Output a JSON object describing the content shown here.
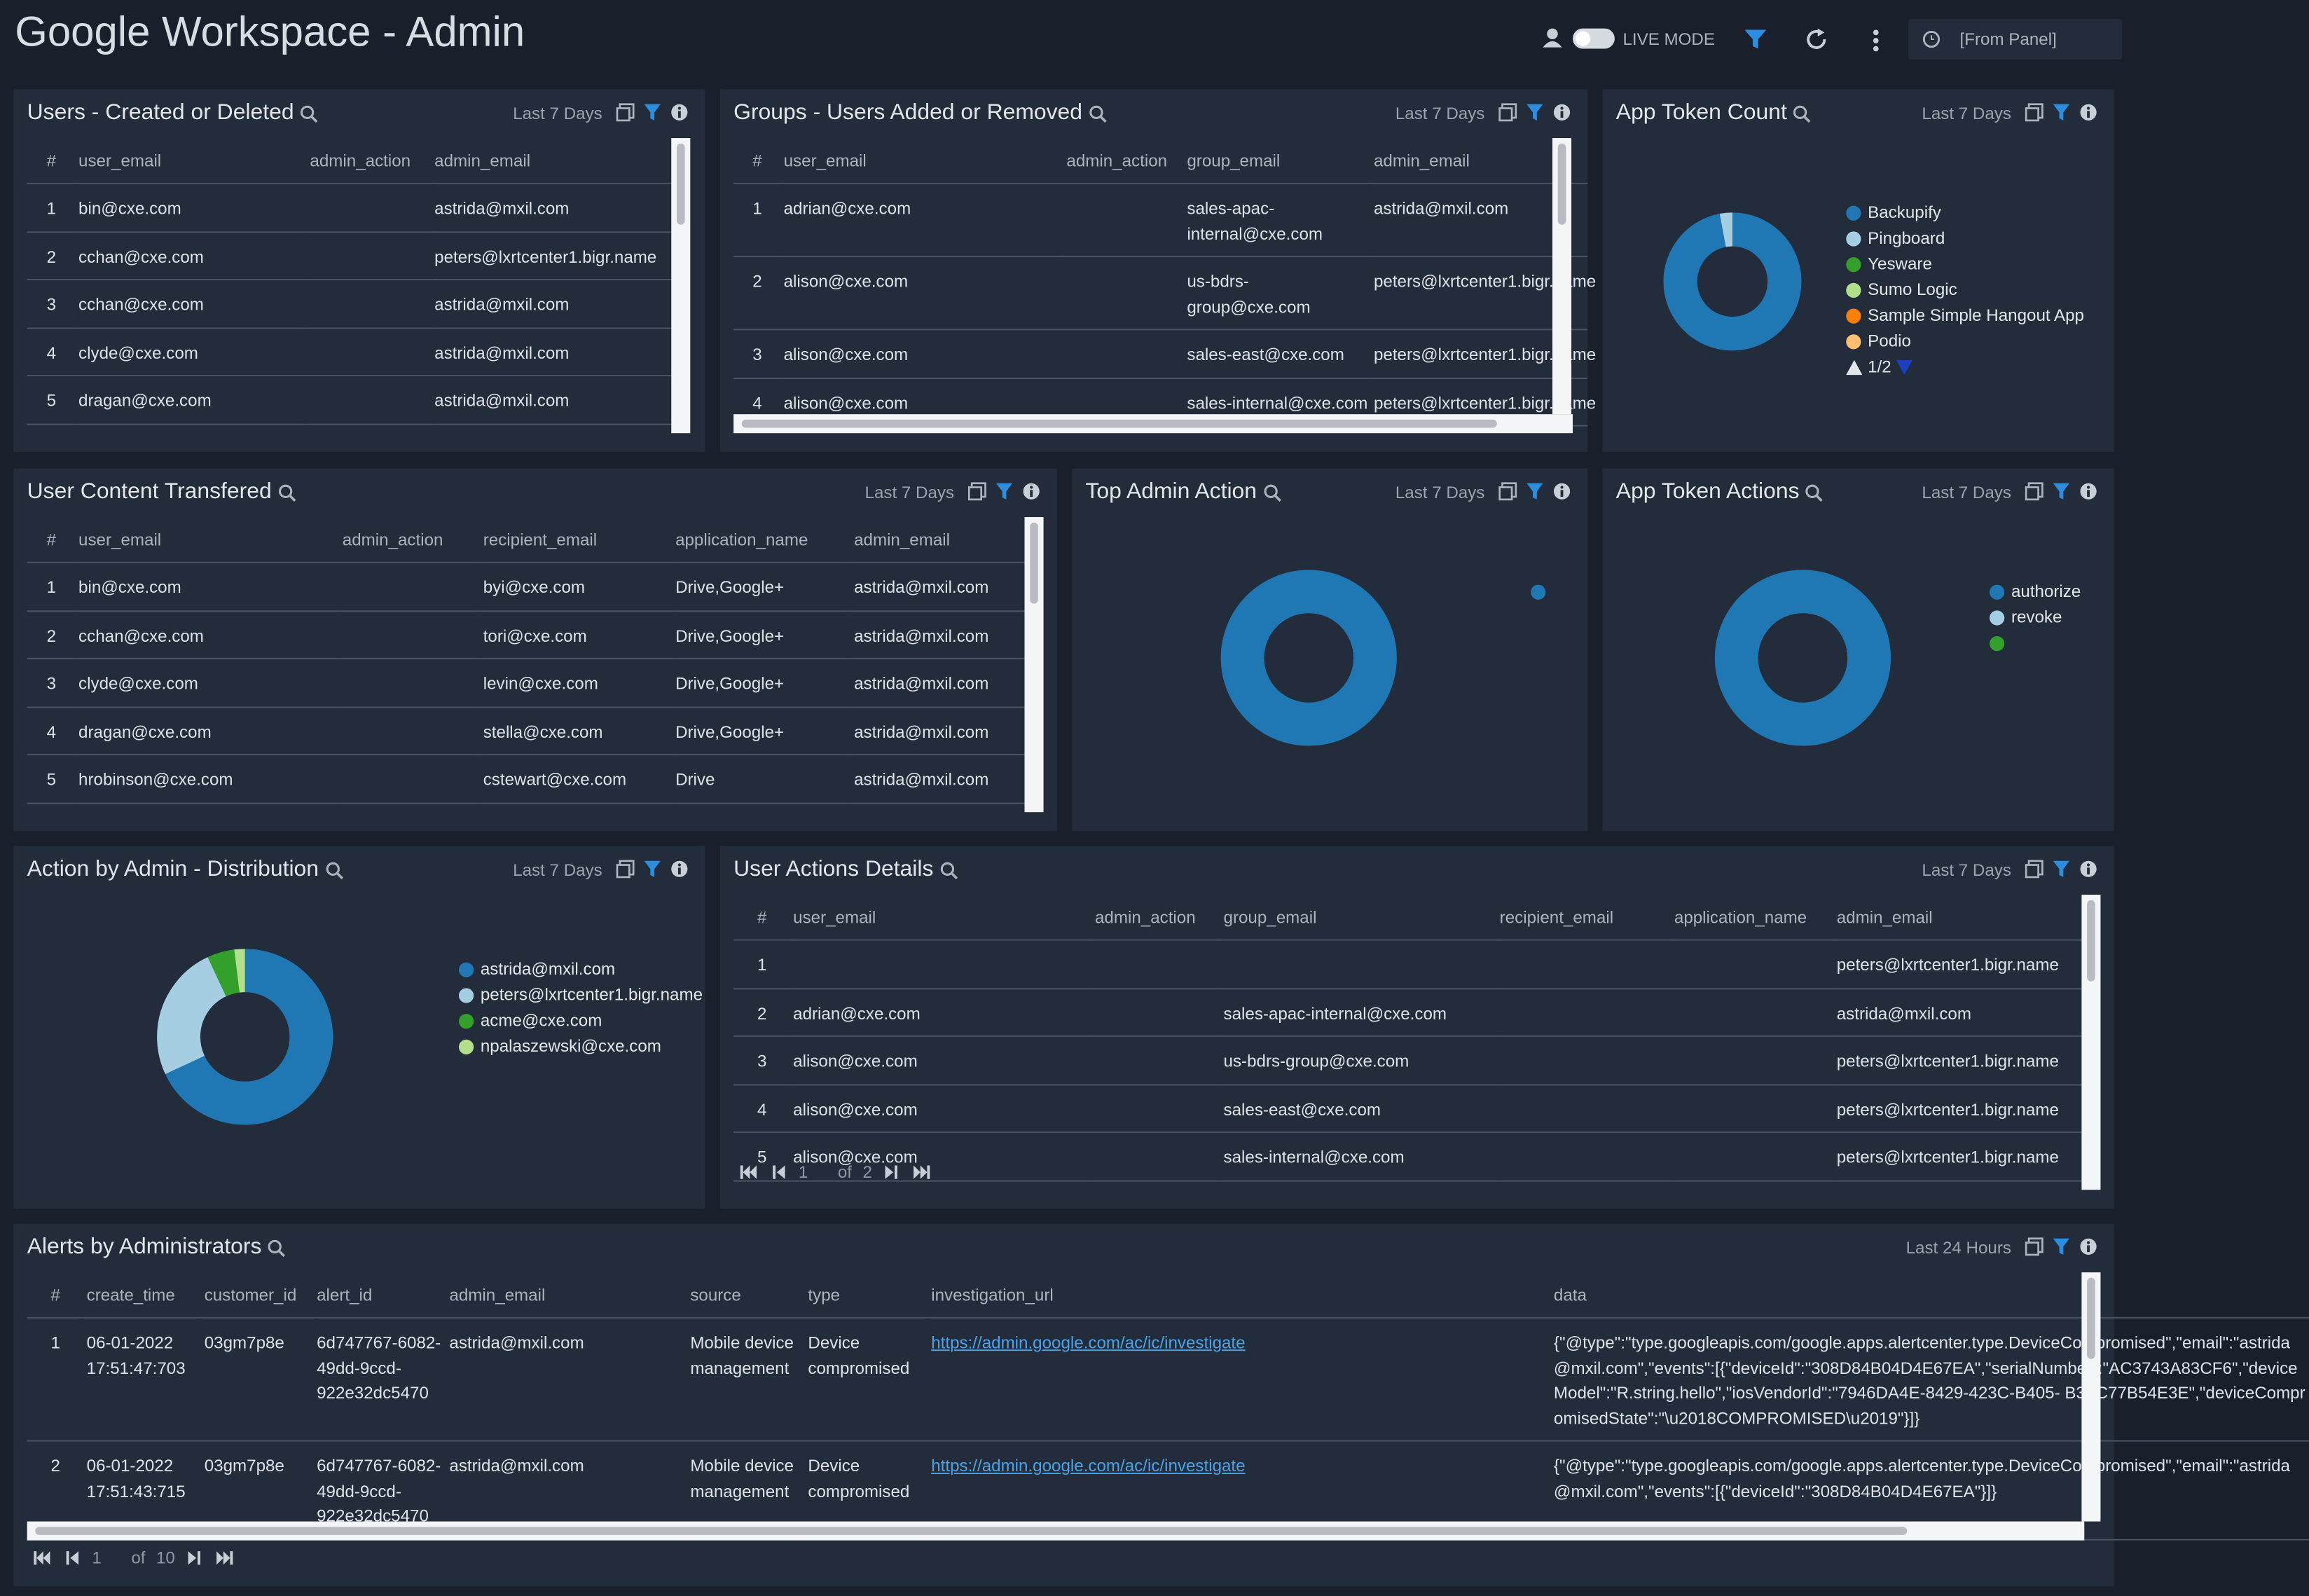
{
  "header": {
    "title": "Google Workspace - Admin",
    "live_mode": "LIVE MODE",
    "time_range": "[From Panel]"
  },
  "panels": [
    {
      "title": "Users - Created or Deleted",
      "range": "Last 7 Days",
      "table": {
        "columns": [
          "#",
          "user_email",
          "admin_action",
          "admin_email"
        ],
        "rows": [
          [
            1,
            "bin@cxe.com",
            null,
            "astrida@mxil.com"
          ],
          [
            2,
            "cchan@cxe.com",
            null,
            "peters@lxrtcenter1.bigr.name"
          ],
          [
            3,
            "cchan@cxe.com",
            null,
            "astrida@mxil.com"
          ],
          [
            4,
            "clyde@cxe.com",
            null,
            "astrida@mxil.com"
          ],
          [
            5,
            "dragan@cxe.com",
            null,
            "astrida@mxil.com"
          ]
        ]
      }
    },
    {
      "title": "Groups - Users Added or Removed",
      "range": "Last 7 Days",
      "table": {
        "columns": [
          "#",
          "user_email",
          "admin_action",
          "group_email",
          "admin_email"
        ],
        "rows": [
          [
            1,
            "adrian@cxe.com",
            null,
            "sales-apac-internal@cxe.com",
            "astrida@mxil.com"
          ],
          [
            2,
            "alison@cxe.com",
            null,
            "us-bdrs-group@cxe.com",
            "peters@lxrtcenter1.bigr.name"
          ],
          [
            3,
            "alison@cxe.com",
            null,
            "sales-east@cxe.com",
            "peters@lxrtcenter1.bigr.name"
          ],
          [
            4,
            "alison@cxe.com",
            null,
            "sales-internal@cxe.com",
            "peters@lxrtcenter1.bigr.name"
          ]
        ]
      }
    },
    {
      "title": "App Token Count",
      "range": "Last 7 Days",
      "chart": {
        "type": "pie",
        "labels": [
          "Backupify",
          "Pingboard",
          "Yesware",
          "Sumo Logic",
          "Sample Simple Hangout App",
          "Podio"
        ],
        "values": [
          97,
          3,
          0,
          0,
          0,
          0
        ],
        "colors": [
          "#1f78b4",
          "#a6cee3",
          "#33a02c",
          "#b2df8a",
          "#ff7f00",
          "#fdbf6f"
        ],
        "legend_page": "1/2"
      }
    },
    {
      "title": "User Content Transfered",
      "range": "Last 7 Days",
      "table": {
        "columns": [
          "#",
          "user_email",
          "admin_action",
          "recipient_email",
          "application_name",
          "admin_email"
        ],
        "rows": [
          [
            1,
            "bin@cxe.com",
            null,
            "byi@cxe.com",
            "Drive,Google+",
            "astrida@mxil.com"
          ],
          [
            2,
            "cchan@cxe.com",
            null,
            "tori@cxe.com",
            "Drive,Google+",
            "astrida@mxil.com"
          ],
          [
            3,
            "clyde@cxe.com",
            null,
            "levin@cxe.com",
            "Drive,Google+",
            "astrida@mxil.com"
          ],
          [
            4,
            "dragan@cxe.com",
            null,
            "stella@cxe.com",
            "Drive,Google+",
            "astrida@mxil.com"
          ],
          [
            5,
            "hrobinson@cxe.com",
            null,
            "cstewart@cxe.com",
            "Drive",
            "astrida@mxil.com"
          ]
        ]
      }
    },
    {
      "title": "Top Admin Action",
      "range": "Last 7 Days",
      "chart": {
        "type": "pie",
        "labels": [
          null
        ],
        "values": [
          100
        ],
        "colors": [
          "#1f78b4"
        ]
      }
    },
    {
      "title": "App Token Actions",
      "range": "Last 7 Days",
      "chart": {
        "type": "pie",
        "labels": [
          "authorize",
          "revoke",
          null
        ],
        "values": [
          100,
          0,
          0
        ],
        "colors": [
          "#1f78b4",
          "#a6cee3",
          "#33a02c"
        ]
      }
    },
    {
      "title": "Action by Admin - Distribution",
      "range": "Last 7 Days",
      "chart": {
        "type": "pie",
        "labels": [
          "astrida@mxil.com",
          "peters@lxrtcenter1.bigr.name",
          "acme@cxe.com",
          "npalaszewski@cxe.com"
        ],
        "values": [
          68,
          25,
          5,
          2
        ],
        "colors": [
          "#1f78b4",
          "#a6cee3",
          "#33a02c",
          "#b2df8a"
        ]
      }
    },
    {
      "title": "User Actions Details",
      "range": "Last 7 Days",
      "table": {
        "columns": [
          "#",
          "user_email",
          "admin_action",
          "group_email",
          "recipient_email",
          "application_name",
          "admin_email"
        ],
        "rows": [
          [
            1,
            null,
            null,
            null,
            null,
            null,
            "peters@lxrtcenter1.bigr.name"
          ],
          [
            2,
            "adrian@cxe.com",
            null,
            "sales-apac-internal@cxe.com",
            null,
            null,
            "astrida@mxil.com"
          ],
          [
            3,
            "alison@cxe.com",
            null,
            "us-bdrs-group@cxe.com",
            null,
            null,
            "peters@lxrtcenter1.bigr.name"
          ],
          [
            4,
            "alison@cxe.com",
            null,
            "sales-east@cxe.com",
            null,
            null,
            "peters@lxrtcenter1.bigr.name"
          ],
          [
            5,
            "alison@cxe.com",
            null,
            "sales-internal@cxe.com",
            null,
            null,
            "peters@lxrtcenter1.bigr.name"
          ]
        ]
      },
      "pager": {
        "current": 1,
        "of": "of",
        "total": 2
      }
    },
    {
      "title": "Alerts by Administrators",
      "range": "Last 24 Hours",
      "table": {
        "columns": [
          "#",
          "create_time",
          "customer_id",
          "alert_id",
          "admin_email",
          "source",
          "type",
          "investigation_url",
          "data"
        ],
        "rows": [
          [
            1,
            "06-01-2022 17:51:47:703",
            "03gm7p8e",
            "6d747767-6082-49dd-9ccd-922e32dc5470",
            "astrida@mxil.com",
            "Mobile device management",
            "Device compromised",
            "https://admin.google.com/ac/ic/investigate",
            "{\"@type\":\"type.googleapis.com/google.apps.alertcenter.type.DeviceCompromised\",\"email\":\"astrida@mxil.com\",\"events\":[{\"deviceId\":\"308D84B04D4E67EA\",\"serialNumber\":\"AC3743A83CF6\",\"deviceModel\":\"R.string.hello\",\"iosVendorId\":\"7946DA4E-8429-423C-B405- B3FC77B54E3E\",\"deviceCompromisedState\":\"\\u2018COMPROMISED\\u2019\"}]}"
          ],
          [
            2,
            "06-01-2022 17:51:43:715",
            "03gm7p8e",
            "6d747767-6082-49dd-9ccd-922e32dc5470",
            "astrida@mxil.com",
            "Mobile device management",
            "Device compromised",
            "https://admin.google.com/ac/ic/investigate",
            "{\"@type\":\"type.googleapis.com/google.apps.alertcenter.type.DeviceCompromised\",\"email\":\"astrida@mxil.com\",\"events\":[{\"deviceId\":\"308D84B04D4E67EA\"}]}"
          ]
        ]
      },
      "pager": {
        "current": 1,
        "of": "of",
        "total": 10
      }
    }
  ]
}
